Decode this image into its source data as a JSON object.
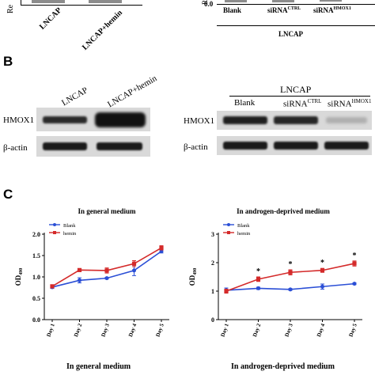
{
  "panel_a": {
    "left": {
      "ylabel_fragment": "Re",
      "tick": "0.0",
      "categories": [
        "LNCAP",
        "LNCAP+hemin"
      ]
    },
    "right": {
      "tick": "0.0",
      "ylabel_fragment": "R",
      "categories": [
        "Blank",
        "siRNA",
        "siRNA"
      ],
      "category_superscripts": [
        "",
        "CTRL",
        "HMOX1"
      ],
      "group_label": "LNCAP"
    }
  },
  "panel_b": {
    "letter": "B",
    "left": {
      "lanes": [
        "LNCAP",
        "LNCAP+hemin"
      ],
      "rows": [
        "HMOX1",
        "β-actin"
      ]
    },
    "right": {
      "group_label": "LNCAP",
      "lanes": [
        "Blank",
        "siRNA",
        "siRNA"
      ],
      "lane_superscripts": [
        "",
        "CTRL",
        "HMOX1"
      ],
      "rows": [
        "HMOX1",
        "β-actin"
      ]
    },
    "colors": {
      "band_dark": "#1a1a1a",
      "band_faint": "#b8b8b8",
      "blot_bg": "#d9d9d9"
    }
  },
  "panel_c": {
    "letter": "C",
    "bottom_captions": [
      "In general medium",
      "In androgen-deprived medium"
    ],
    "colors": {
      "blank": "#2b4fd6",
      "hemin": "#d42a2a"
    }
  },
  "chart_data": [
    {
      "type": "line",
      "title": "In general medium",
      "ylabel": "OD",
      "ylabel_subscript": "490",
      "categories": [
        "Day 1",
        "Day 2",
        "Day 3",
        "Day 4",
        "Day 5"
      ],
      "ylim": [
        0.0,
        2.0
      ],
      "yticks": [
        "0.0",
        "0.5",
        "1.0",
        "1.5",
        "2.0"
      ],
      "legend_position": "top-left",
      "series": [
        {
          "name": "Blank",
          "values": [
            0.76,
            0.92,
            0.97,
            1.15,
            1.6
          ],
          "errors": [
            0.03,
            0.06,
            0.02,
            0.12,
            0.04
          ]
        },
        {
          "name": "hemin",
          "values": [
            0.78,
            1.16,
            1.15,
            1.31,
            1.68
          ],
          "errors": [
            0.02,
            0.03,
            0.06,
            0.07,
            0.05
          ]
        }
      ],
      "annotations": []
    },
    {
      "type": "line",
      "title": "In androgen-deprived medium",
      "ylabel": "OD",
      "ylabel_subscript": "490",
      "categories": [
        "Day 1",
        "Day 2",
        "Day 3",
        "Day 4",
        "Day 5"
      ],
      "ylim": [
        0,
        3
      ],
      "yticks": [
        "0",
        "1",
        "2",
        "3"
      ],
      "legend_position": "top-left",
      "series": [
        {
          "name": "Blank",
          "values": [
            1.03,
            1.1,
            1.06,
            1.16,
            1.26
          ],
          "errors": [
            0.08,
            0.04,
            0.03,
            0.09,
            0.03
          ]
        },
        {
          "name": "hemin",
          "values": [
            1.0,
            1.42,
            1.66,
            1.73,
            1.97
          ],
          "errors": [
            0.07,
            0.08,
            0.09,
            0.07,
            0.09
          ]
        }
      ],
      "annotations": [
        "*",
        "*",
        "*",
        "*"
      ]
    }
  ]
}
